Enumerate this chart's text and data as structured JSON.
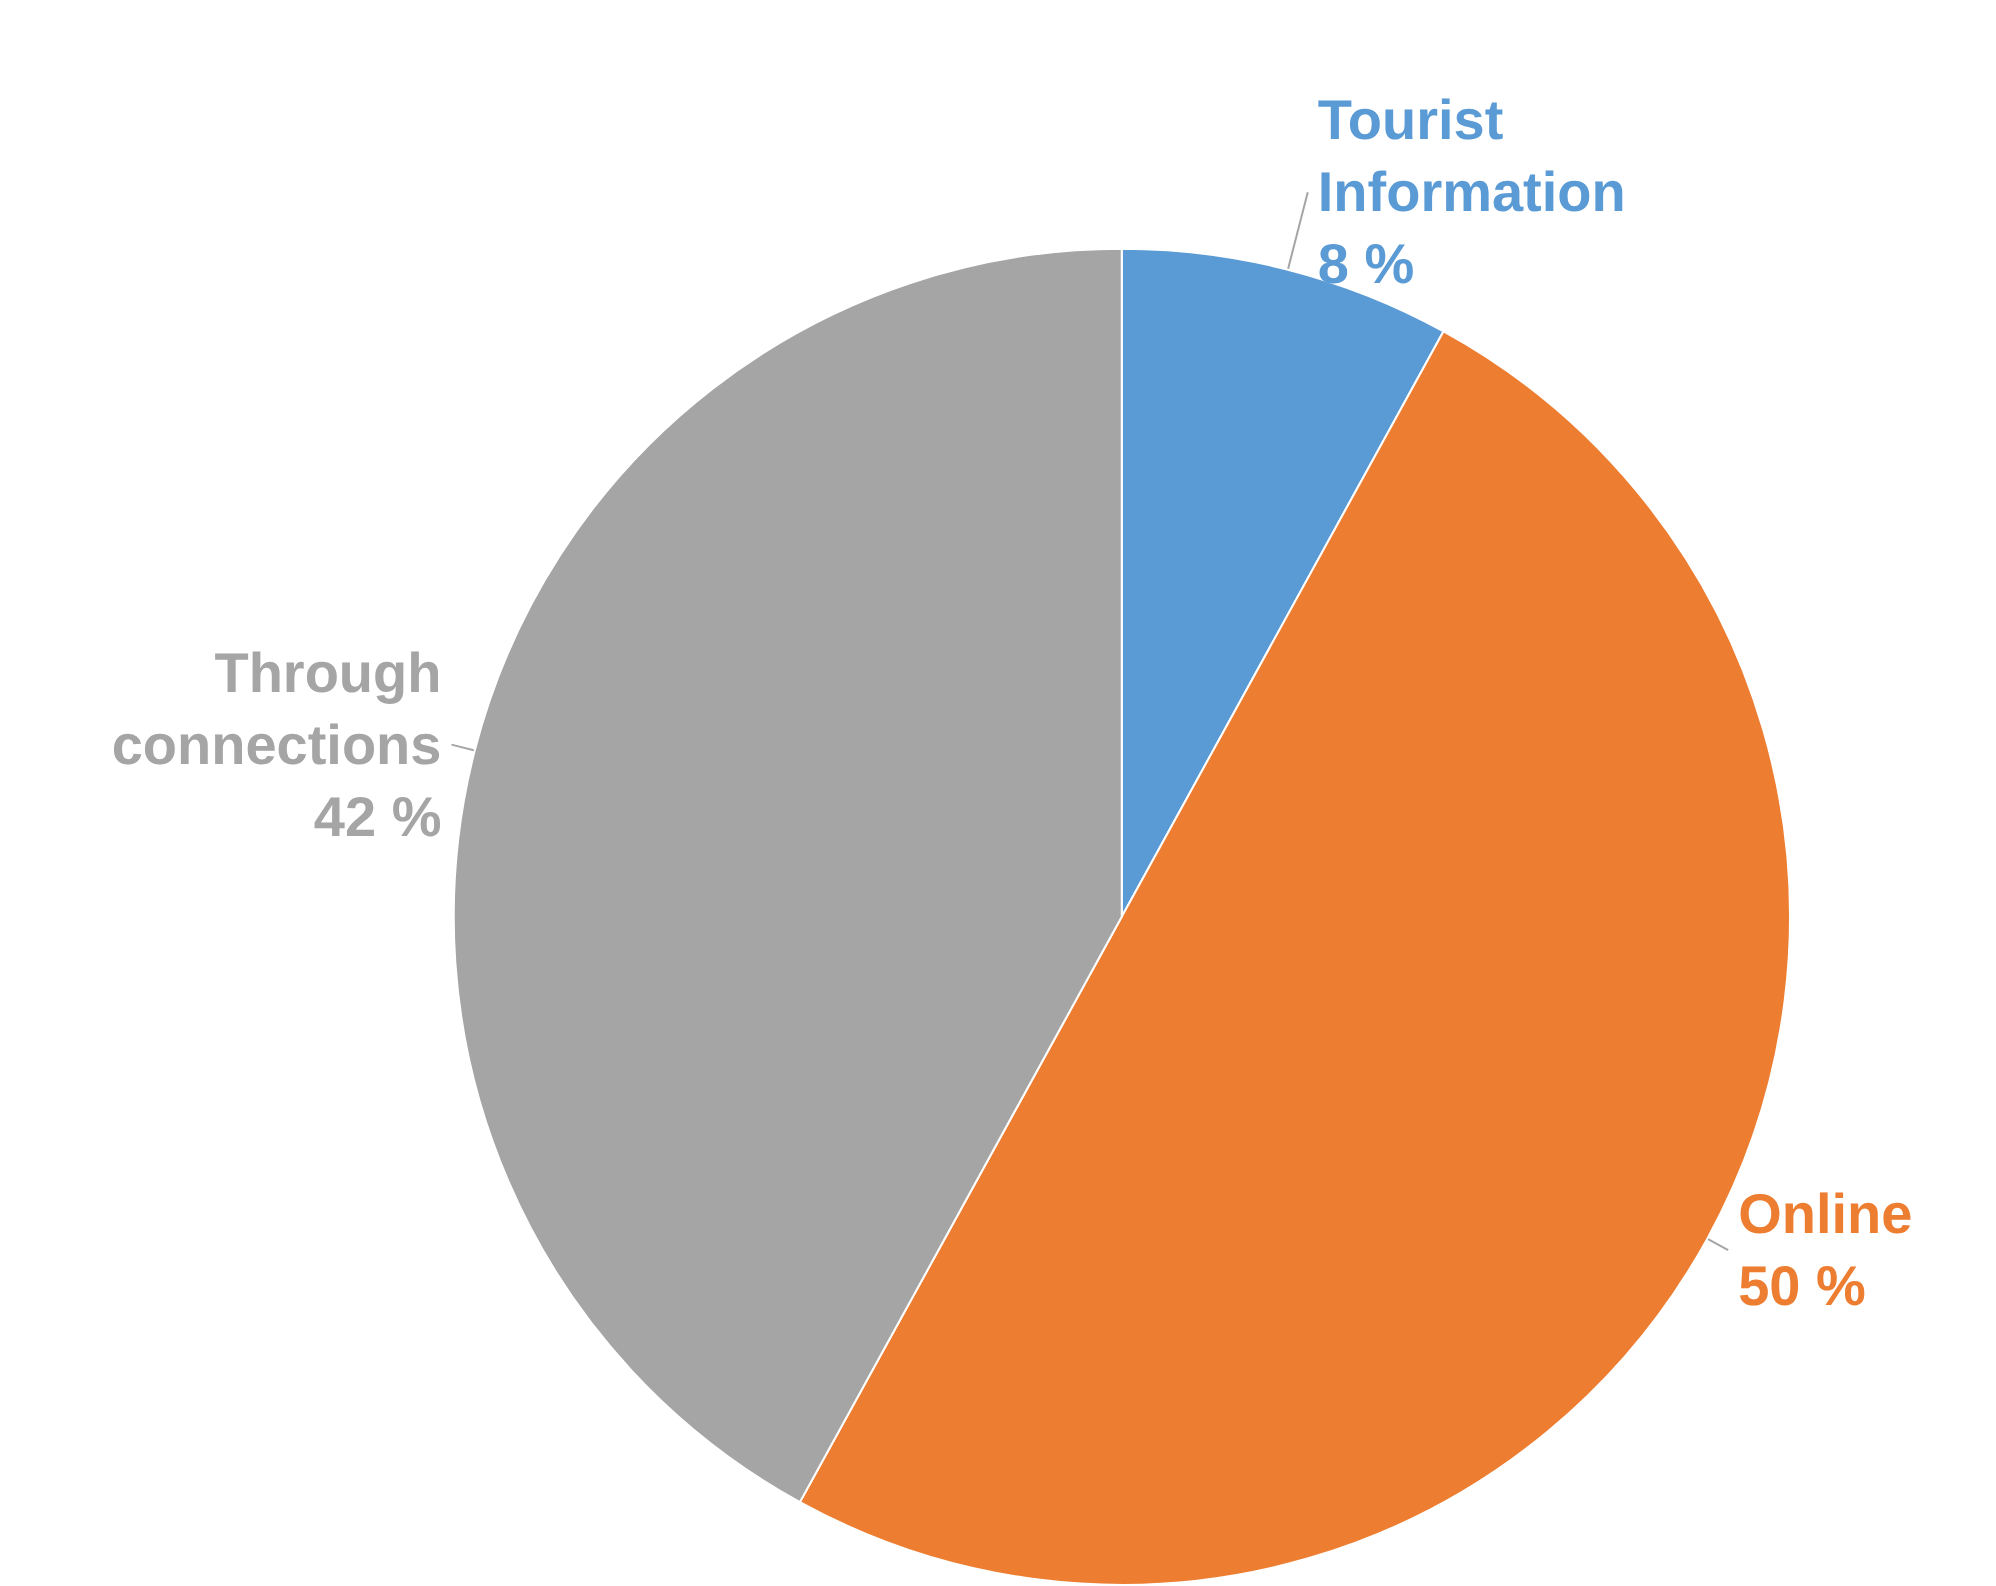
{
  "chart_data": {
    "type": "pie",
    "categories": [
      "Tourist Information",
      "Online",
      "Through connections"
    ],
    "values": [
      8,
      50,
      42
    ],
    "colors": [
      "#5b9bd5",
      "#ed7d31",
      "#a5a5a5"
    ],
    "value_labels": [
      "8 %",
      "50 %",
      "42 %"
    ]
  }
}
